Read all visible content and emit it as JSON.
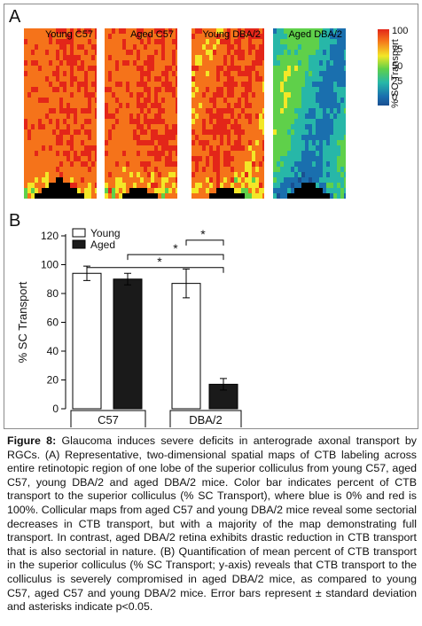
{
  "panel_a": {
    "letter": "A",
    "maps": [
      {
        "label": "Young C57",
        "theme": "warm"
      },
      {
        "label": "Aged C57",
        "theme": "warm"
      },
      {
        "label": "Young DBA/2",
        "theme": "warm"
      },
      {
        "label": "Aged DBA/2",
        "theme": "cool"
      }
    ],
    "colorbar": {
      "title": "% SC Transport",
      "ticks": [
        "100",
        "75",
        "50",
        "25",
        "0"
      ],
      "colors": [
        "#e32619",
        "#f5731a",
        "#f3e727",
        "#5fd04a",
        "#27b7a8",
        "#1a6fae",
        "#1a4f91"
      ]
    }
  },
  "panel_b": {
    "letter": "B"
  },
  "chart_data": {
    "type": "bar",
    "groups": [
      "C57",
      "DBA/2"
    ],
    "series": [
      {
        "name": "Young",
        "values": [
          94,
          87
        ],
        "errors": [
          5,
          10
        ],
        "color": "#ffffff"
      },
      {
        "name": "Aged",
        "values": [
          90,
          17
        ],
        "errors": [
          4,
          4
        ],
        "color": "#1a1a1a"
      }
    ],
    "ylabel": "% SC Transport",
    "ylim": [
      0,
      120
    ],
    "yticks": [
      0,
      20,
      40,
      60,
      80,
      100,
      120
    ],
    "significance": [
      "*",
      "*",
      "*"
    ],
    "legend_position": "top-left"
  },
  "caption": {
    "label": "Figure 8:",
    "text": "Glaucoma induces severe deficits in anterograde axonal transport by RGCs. (A) Representative, two-dimensional spatial maps of CTB labeling across entire retinotopic region of one lobe of the superior colliculus from young C57, aged C57, young DBA/2 and aged DBA/2 mice. Color bar indicates percent of CTB transport to the superior colliculus (% SC Transport), where blue is 0% and red is 100%. Collicular maps from aged C57 and young DBA/2 mice reveal some sectorial decreases in CTB transport, but with a majority of the map demonstrating full transport. In contrast, aged DBA/2 retina exhibits drastic reduction in CTB transport that is also sectorial in nature. (B) Quantification of mean percent of CTB transport in the superior colliculus (% SC Transport; y-axis) reveals that CTB transport to the colliculus is severely compromised in aged DBA/2 mice, as compared to young C57, aged C57 and young DBA/2 mice. Error bars represent ± standard deviation and asterisks indicate p<0.05."
  }
}
